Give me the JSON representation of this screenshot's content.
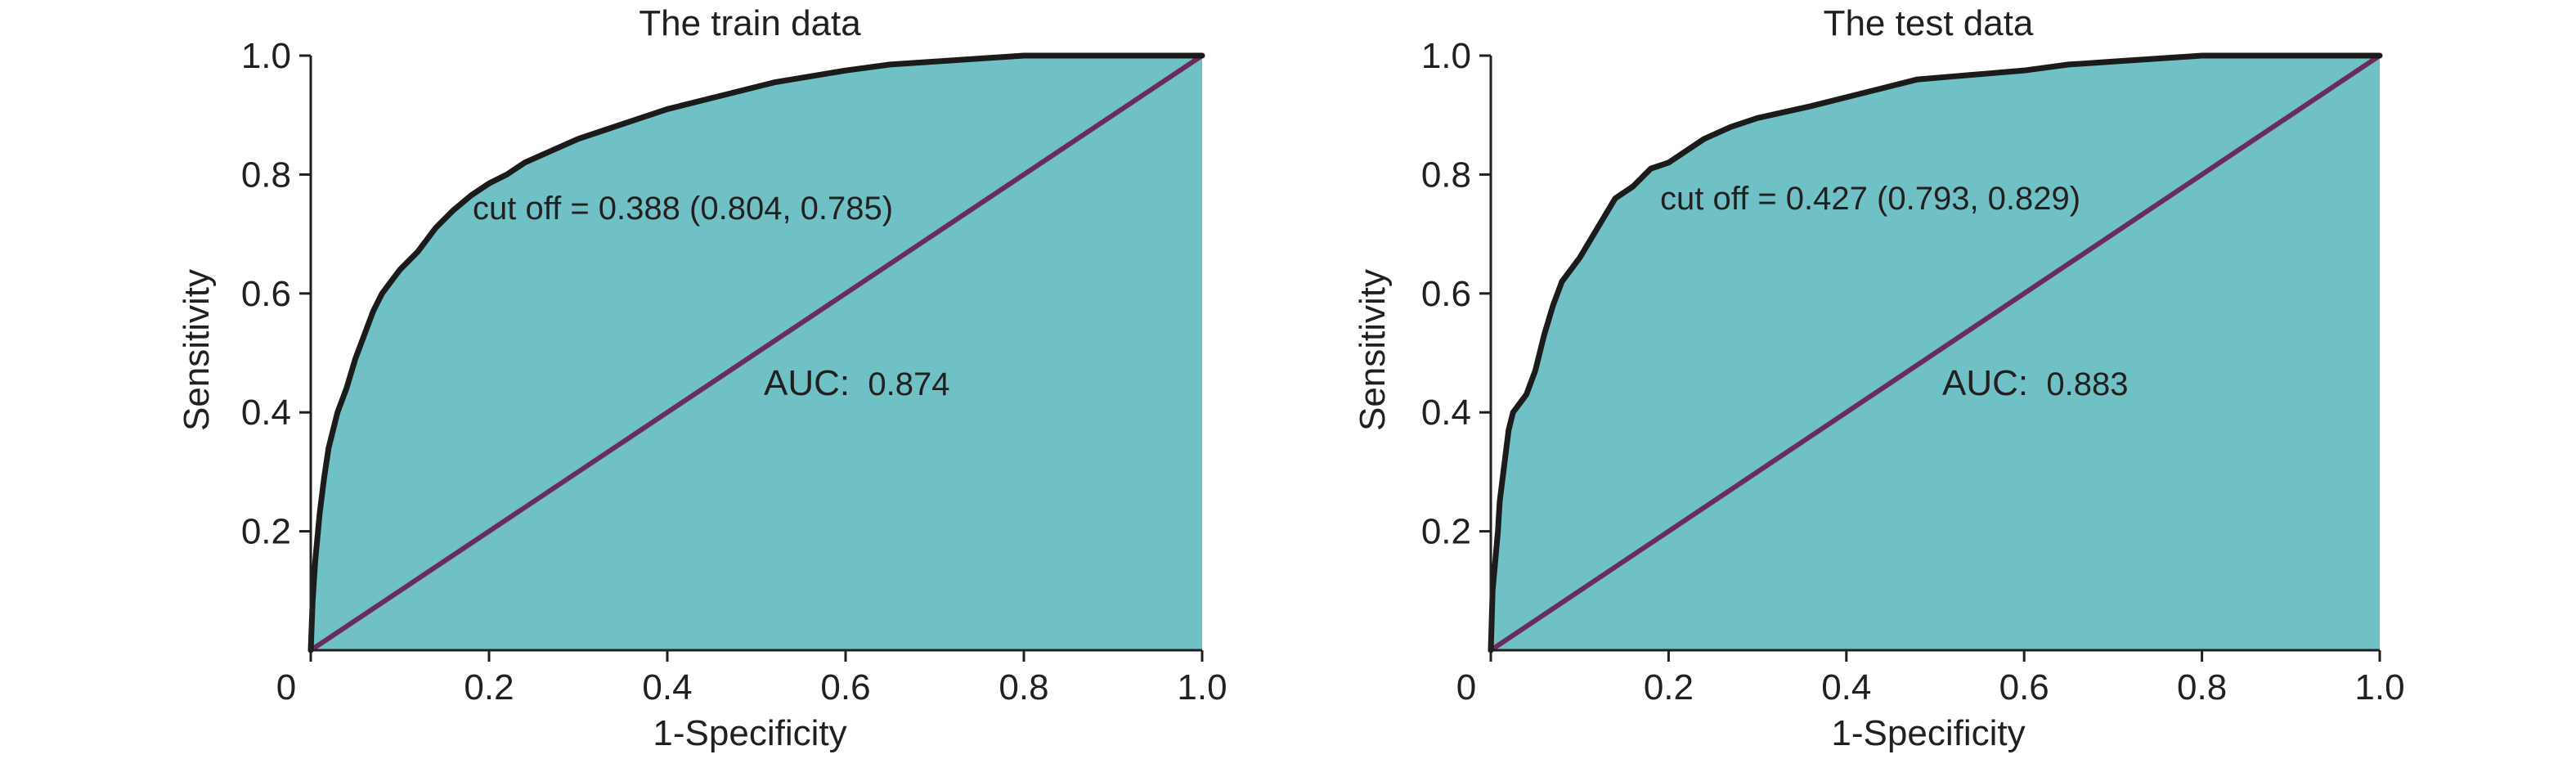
{
  "colors": {
    "area_fill": "#6fc1c6",
    "roc_curve": "#1b1b1b",
    "diagonal": "#6a2c5a",
    "axis": "#231f20"
  },
  "chart_data": [
    {
      "type": "area",
      "title": "The train data",
      "xlabel": "1-Specificity",
      "ylabel": "Sensitivity",
      "xlim": [
        0,
        1
      ],
      "ylim": [
        0,
        1
      ],
      "x_ticks": [
        "0",
        "0.2",
        "0.4",
        "0.6",
        "0.8",
        "1.0"
      ],
      "y_ticks": [
        "0.2",
        "0.4",
        "0.6",
        "0.8",
        "1.0"
      ],
      "x_tick_values": [
        0,
        0.2,
        0.4,
        0.6,
        0.8,
        1.0
      ],
      "y_tick_values": [
        0.2,
        0.4,
        0.6,
        0.8,
        1.0
      ],
      "grid": false,
      "series": [
        {
          "x": [
            0,
            0.002,
            0.005,
            0.01,
            0.015,
            0.02,
            0.03,
            0.04,
            0.05,
            0.06,
            0.07,
            0.08,
            0.09,
            0.1,
            0.12,
            0.14,
            0.16,
            0.18,
            0.2,
            0.22,
            0.24,
            0.27,
            0.3,
            0.33,
            0.36,
            0.4,
            0.44,
            0.48,
            0.52,
            0.56,
            0.6,
            0.65,
            0.7,
            0.75,
            0.8,
            0.85,
            0.9,
            0.95,
            1.0
          ],
          "y": [
            0,
            0.08,
            0.15,
            0.23,
            0.29,
            0.34,
            0.4,
            0.44,
            0.49,
            0.53,
            0.57,
            0.6,
            0.62,
            0.64,
            0.67,
            0.71,
            0.74,
            0.765,
            0.785,
            0.8,
            0.82,
            0.84,
            0.86,
            0.875,
            0.89,
            0.91,
            0.925,
            0.94,
            0.955,
            0.965,
            0.975,
            0.985,
            0.99,
            0.995,
            1.0,
            1.0,
            1.0,
            1.0,
            1.0
          ]
        },
        {
          "x": [
            0,
            1
          ],
          "y": [
            0,
            1
          ]
        }
      ],
      "annotations": {
        "cutoff": "cut off = 0.388 (0.804, 0.785)",
        "auc_label": "AUC:",
        "auc_value": "0.874"
      }
    },
    {
      "type": "area",
      "title": "The test data",
      "xlabel": "1-Specificity",
      "ylabel": "Sensitivity",
      "xlim": [
        0,
        1
      ],
      "ylim": [
        0,
        1
      ],
      "x_ticks": [
        "0",
        "0.2",
        "0.4",
        "0.6",
        "0.8",
        "1.0"
      ],
      "y_ticks": [
        "0.2",
        "0.4",
        "0.6",
        "0.8",
        "1.0"
      ],
      "x_tick_values": [
        0,
        0.2,
        0.4,
        0.6,
        0.8,
        1.0
      ],
      "y_tick_values": [
        0.2,
        0.4,
        0.6,
        0.8,
        1.0
      ],
      "grid": false,
      "series": [
        {
          "x": [
            0,
            0.002,
            0.005,
            0.008,
            0.01,
            0.015,
            0.02,
            0.025,
            0.03,
            0.04,
            0.05,
            0.06,
            0.07,
            0.08,
            0.09,
            0.1,
            0.12,
            0.14,
            0.16,
            0.18,
            0.2,
            0.22,
            0.24,
            0.27,
            0.3,
            0.33,
            0.36,
            0.4,
            0.44,
            0.48,
            0.52,
            0.56,
            0.6,
            0.65,
            0.7,
            0.75,
            0.8,
            0.9,
            1.0
          ],
          "y": [
            0,
            0.1,
            0.15,
            0.2,
            0.25,
            0.31,
            0.37,
            0.4,
            0.41,
            0.43,
            0.47,
            0.53,
            0.58,
            0.62,
            0.64,
            0.66,
            0.71,
            0.76,
            0.78,
            0.81,
            0.82,
            0.84,
            0.86,
            0.88,
            0.895,
            0.905,
            0.915,
            0.93,
            0.945,
            0.96,
            0.965,
            0.97,
            0.975,
            0.985,
            0.99,
            0.995,
            1.0,
            1.0,
            1.0
          ]
        },
        {
          "x": [
            0,
            1
          ],
          "y": [
            0,
            1
          ]
        }
      ],
      "annotations": {
        "cutoff": "cut off = 0.427 (0.793, 0.829)",
        "auc_label": "AUC:",
        "auc_value": "0.883"
      }
    }
  ]
}
